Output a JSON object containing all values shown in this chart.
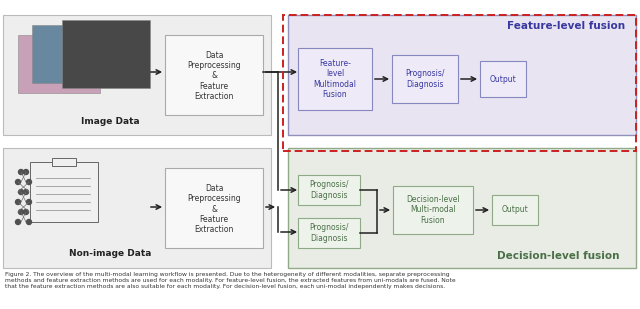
{
  "fig_width": 6.4,
  "fig_height": 3.09,
  "bg_color": "#ffffff",
  "left_panel_bg": "#eeeeee",
  "left_panel_edge": "#bbbbbb",
  "feature_panel_bg": "#e8e4f2",
  "feature_panel_edge": "#9090bb",
  "decision_panel_bg": "#e8ece4",
  "decision_panel_edge": "#90aa88",
  "red_dash_color": "#cc2020",
  "arrow_color": "#222222",
  "feature_text_color": "#3838a0",
  "decision_text_color": "#4a7048",
  "dark_text": "#222222",
  "feature_title": "Feature-level fusion",
  "decision_title": "Decision-level fusion",
  "image_data_label": "Image Data",
  "nonimage_data_label": "Non-image Data",
  "preproc_label": "Data\nPreprocessing\n&\nFeature\nExtraction",
  "feature_fusion_label": "Feature-\nlevel\nMultimodal\nFusion",
  "prognosis_label": "Prognosis/\nDiagnosis",
  "output_label": "Output",
  "decision_fusion_label": "Decision-level\nMulti-modal\nFusion",
  "caption_line1": "Figure 2. The overview of the multi-modal learning workflow is presented. Due to the heterogeneity of different modalities, separate preprocessing",
  "caption_line2": "methods and feature extraction methods are used for each modality. For feature-level fusion, the extracted features from uni-modals are fused. Note",
  "caption_line3": "that the feature extraction methods are also suitable for each modality. For decision-level fusion, each uni-modal independently makes decisions."
}
